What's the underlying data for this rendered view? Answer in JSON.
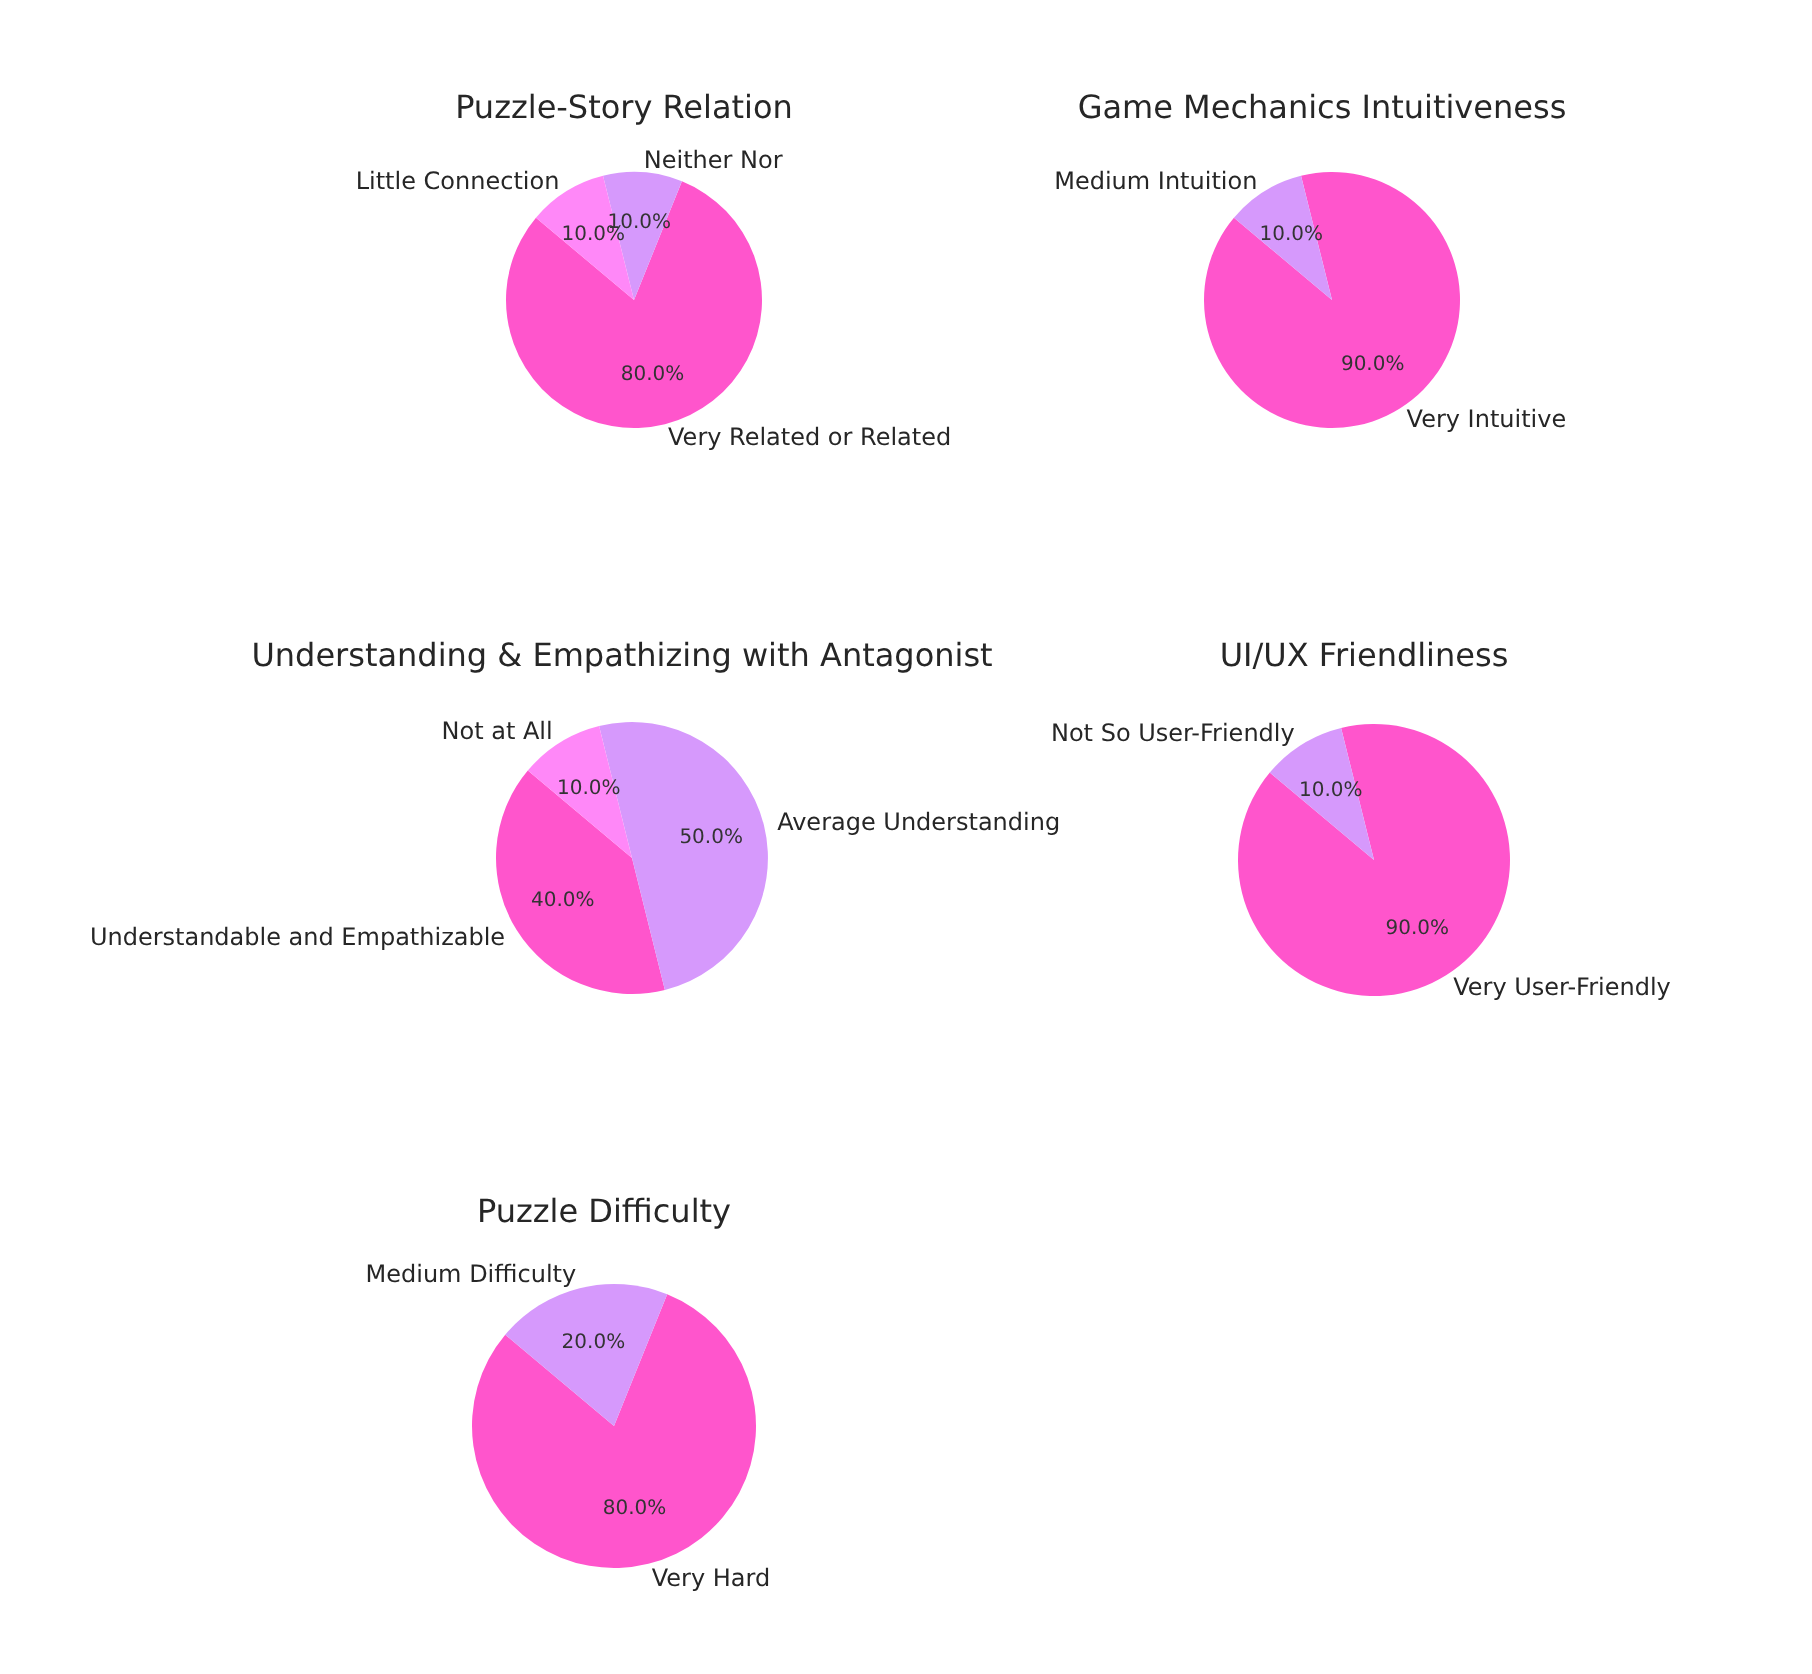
{
  "chart_data": [
    {
      "type": "pie",
      "title": "Puzzle-Story Relation",
      "categories": [
        "Very Related or Related",
        "Neither Nor",
        "Little Connection"
      ],
      "values": [
        80,
        10,
        10
      ],
      "colors": [
        "#ff55cc",
        "#d699fc",
        "#ff88f8"
      ],
      "value_labels": [
        "80.0%",
        "10.0%",
        "10.0%"
      ]
    },
    {
      "type": "pie",
      "title": "Game Mechanics Intuitiveness",
      "categories": [
        "Very Intuitive",
        "Medium Intuition"
      ],
      "values": [
        90,
        10
      ],
      "colors": [
        "#ff55cc",
        "#d699fc"
      ],
      "value_labels": [
        "90.0%",
        "10.0%"
      ]
    },
    {
      "type": "pie",
      "title": "Understanding & Empathizing with Antagonist",
      "categories": [
        "Understandable and Empathizable",
        "Average Understanding",
        "Not at All"
      ],
      "values": [
        40,
        50,
        10
      ],
      "colors": [
        "#ff55cc",
        "#d699fc",
        "#ff88f8"
      ],
      "value_labels": [
        "40.0%",
        "50.0%",
        "10.0%"
      ]
    },
    {
      "type": "pie",
      "title": "UI/UX Friendliness",
      "categories": [
        "Very User-Friendly",
        "Not So User-Friendly"
      ],
      "values": [
        90,
        10
      ],
      "colors": [
        "#ff55cc",
        "#d699fc"
      ],
      "value_labels": [
        "90.0%",
        "10.0%"
      ]
    },
    {
      "type": "pie",
      "title": "Puzzle Difficulty",
      "categories": [
        "Very Hard",
        "Medium Difficulty"
      ],
      "values": [
        80,
        20
      ],
      "colors": [
        "#ff55cc",
        "#d699fc"
      ],
      "value_labels": [
        "80.0%",
        "20.0%"
      ]
    }
  ]
}
